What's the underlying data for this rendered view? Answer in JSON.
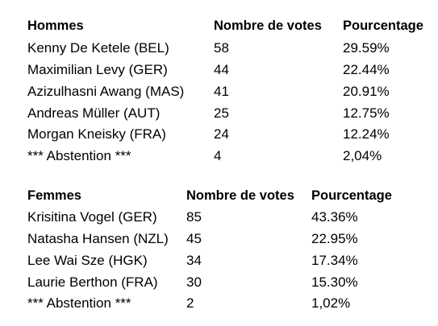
{
  "hommes": {
    "headers": [
      "Hommes",
      "Nombre de votes",
      "Pourcentage"
    ],
    "rows": [
      [
        "Kenny De Ketele (BEL)",
        "58",
        "29.59%"
      ],
      [
        "Maximilian Levy (GER)",
        "44",
        "22.44%"
      ],
      [
        "Azizulhasni Awang (MAS)",
        "41",
        "20.91%"
      ],
      [
        "Andreas Müller (AUT)",
        "25",
        "12.75%"
      ],
      [
        "Morgan Kneisky (FRA)",
        "24",
        "12.24%"
      ],
      [
        "*** Abstention ***",
        "4",
        "2,04%"
      ]
    ]
  },
  "femmes": {
    "headers": [
      "Femmes",
      "Nombre de votes",
      "Pourcentage"
    ],
    "rows": [
      [
        "Krisitina Vogel (GER)",
        "85",
        "43.36%"
      ],
      [
        "Natasha Hansen (NZL)",
        "45",
        "22.95%"
      ],
      [
        "Lee Wai Sze (HGK)",
        "34",
        "17.34%"
      ],
      [
        "Laurie Berthon (FRA)",
        "30",
        "15.30%"
      ],
      [
        "*** Abstention ***",
        "2",
        "1,02%"
      ]
    ]
  }
}
